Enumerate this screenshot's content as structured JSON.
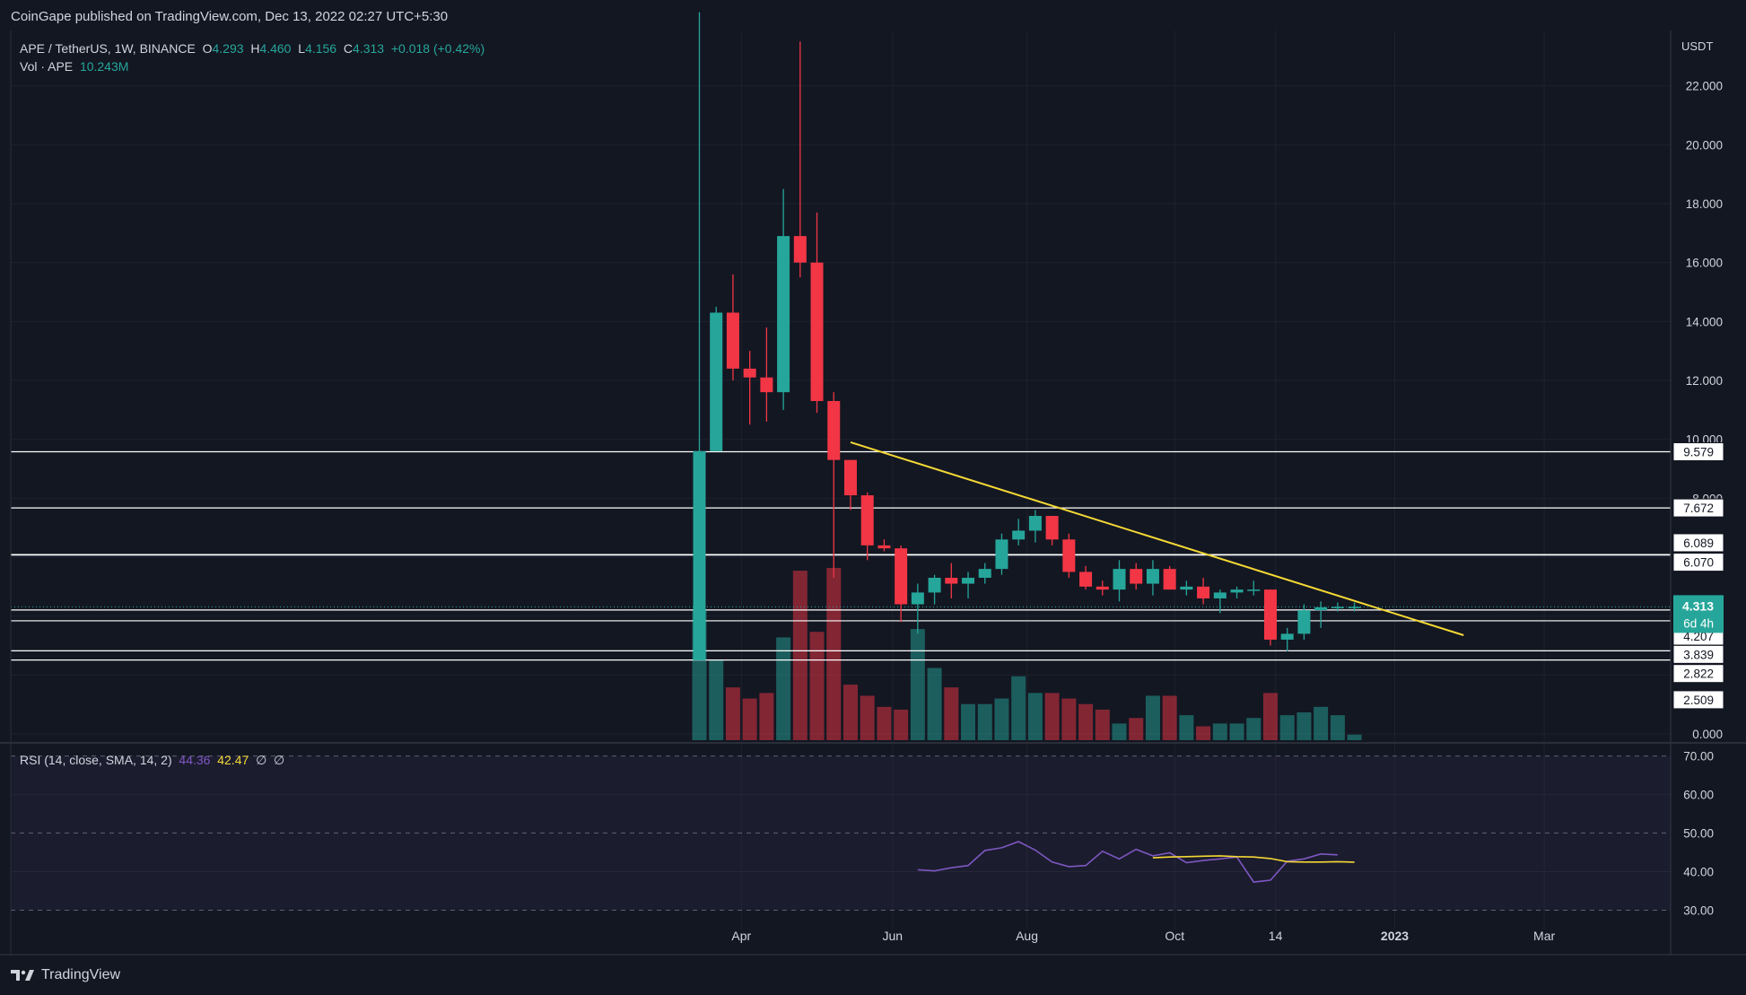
{
  "publisher": "CoinGape published on TradingView.com, Dec 13, 2022 02:27 UTC+5:30",
  "brand": "TradingView",
  "legend": {
    "symbol": "APE / TetherUS, 1W, BINANCE",
    "o_label": "O",
    "o": "4.293",
    "h_label": "H",
    "h": "4.460",
    "l_label": "L",
    "l": "4.156",
    "c_label": "C",
    "c": "4.313",
    "change": "+0.018 (+0.42%)",
    "vol_label": "Vol · APE",
    "vol": "10.243M"
  },
  "rsi_legend": {
    "label": "RSI (14, close, SMA, 14, 2)",
    "rsi": "44.36",
    "sma": "42.47",
    "e1": "∅",
    "e2": "∅"
  },
  "colors": {
    "up": "#26a69a",
    "down": "#f23645",
    "trend": "#f5d835",
    "rsi": "#7e57c2",
    "rsi_sma": "#f5d835",
    "bg": "#131722",
    "grid": "#1e222d"
  },
  "chart_data": [
    {
      "type": "candlestick",
      "title": "APE / TetherUS, 1W, BINANCE",
      "y_unit": "USDT",
      "ylim": [
        0,
        24
      ],
      "y_ticks": [
        "0.000",
        "2.000",
        "4.000",
        "6.000",
        "8.000",
        "10.000",
        "12.000",
        "14.000",
        "16.000",
        "18.000",
        "20.000",
        "22.000"
      ],
      "x_ticks": [
        {
          "label": "Apr",
          "week": 2.5
        },
        {
          "label": "Jun",
          "week": 11.5
        },
        {
          "label": "Aug",
          "week": 19.5
        },
        {
          "label": "Oct",
          "week": 28.3
        },
        {
          "label": "14",
          "week": 34.3
        },
        {
          "label": "2023",
          "week": 41.4
        },
        {
          "label": "Mar",
          "week": 50.3
        }
      ],
      "candles": [
        {
          "o": 2.5,
          "h": 24.5,
          "l": 2.5,
          "c": 9.6,
          "v": 47
        },
        {
          "o": 9.6,
          "h": 14.5,
          "l": 9.6,
          "c": 14.3,
          "v": 29
        },
        {
          "o": 14.3,
          "h": 15.6,
          "l": 12.0,
          "c": 12.4,
          "v": 19
        },
        {
          "o": 12.4,
          "h": 13.0,
          "l": 10.5,
          "c": 12.1,
          "v": 15
        },
        {
          "o": 12.1,
          "h": 13.8,
          "l": 10.6,
          "c": 11.6,
          "v": 17
        },
        {
          "o": 11.6,
          "h": 18.5,
          "l": 11.0,
          "c": 16.9,
          "v": 37
        },
        {
          "o": 16.9,
          "h": 23.5,
          "l": 15.5,
          "c": 16.0,
          "v": 61
        },
        {
          "o": 16.0,
          "h": 17.7,
          "l": 10.9,
          "c": 11.3,
          "v": 39
        },
        {
          "o": 11.3,
          "h": 11.6,
          "l": 5.3,
          "c": 9.3,
          "v": 62
        },
        {
          "o": 9.3,
          "h": 9.3,
          "l": 7.6,
          "c": 8.1,
          "v": 20
        },
        {
          "o": 8.1,
          "h": 8.2,
          "l": 5.9,
          "c": 6.4,
          "v": 16
        },
        {
          "o": 6.4,
          "h": 6.6,
          "l": 6.2,
          "c": 6.3,
          "v": 12
        },
        {
          "o": 6.3,
          "h": 6.4,
          "l": 3.8,
          "c": 4.4,
          "v": 11
        },
        {
          "o": 4.4,
          "h": 5.1,
          "l": 3.4,
          "c": 4.8,
          "v": 40
        },
        {
          "o": 4.8,
          "h": 5.4,
          "l": 4.4,
          "c": 5.3,
          "v": 26
        },
        {
          "o": 5.3,
          "h": 5.8,
          "l": 4.6,
          "c": 5.1,
          "v": 19
        },
        {
          "o": 5.1,
          "h": 5.5,
          "l": 4.6,
          "c": 5.3,
          "v": 13
        },
        {
          "o": 5.3,
          "h": 5.8,
          "l": 5.1,
          "c": 5.6,
          "v": 13
        },
        {
          "o": 5.6,
          "h": 6.8,
          "l": 5.4,
          "c": 6.6,
          "v": 15
        },
        {
          "o": 6.6,
          "h": 7.3,
          "l": 6.4,
          "c": 6.9,
          "v": 23
        },
        {
          "o": 6.9,
          "h": 7.6,
          "l": 6.5,
          "c": 7.4,
          "v": 17
        },
        {
          "o": 7.4,
          "h": 7.4,
          "l": 6.4,
          "c": 6.6,
          "v": 17
        },
        {
          "o": 6.6,
          "h": 6.8,
          "l": 5.3,
          "c": 5.5,
          "v": 15
        },
        {
          "o": 5.5,
          "h": 5.7,
          "l": 4.9,
          "c": 5.0,
          "v": 13
        },
        {
          "o": 5.0,
          "h": 5.2,
          "l": 4.7,
          "c": 4.9,
          "v": 11
        },
        {
          "o": 4.9,
          "h": 5.9,
          "l": 4.5,
          "c": 5.6,
          "v": 6
        },
        {
          "o": 5.6,
          "h": 5.8,
          "l": 4.9,
          "c": 5.1,
          "v": 8
        },
        {
          "o": 5.1,
          "h": 5.9,
          "l": 4.7,
          "c": 5.6,
          "v": 16
        },
        {
          "o": 5.6,
          "h": 5.7,
          "l": 4.9,
          "c": 4.9,
          "v": 16
        },
        {
          "o": 4.9,
          "h": 5.2,
          "l": 4.7,
          "c": 5.0,
          "v": 9
        },
        {
          "o": 5.0,
          "h": 5.3,
          "l": 4.4,
          "c": 4.6,
          "v": 5
        },
        {
          "o": 4.6,
          "h": 4.9,
          "l": 4.1,
          "c": 4.8,
          "v": 6
        },
        {
          "o": 4.8,
          "h": 5.0,
          "l": 4.6,
          "c": 4.9,
          "v": 6
        },
        {
          "o": 4.9,
          "h": 5.2,
          "l": 4.7,
          "c": 4.9,
          "v": 8
        },
        {
          "o": 4.9,
          "h": 4.9,
          "l": 3.0,
          "c": 3.2,
          "v": 17
        },
        {
          "o": 3.2,
          "h": 3.6,
          "l": 2.8,
          "c": 3.4,
          "v": 9
        },
        {
          "o": 3.4,
          "h": 4.4,
          "l": 3.2,
          "c": 4.2,
          "v": 10
        },
        {
          "o": 4.2,
          "h": 4.5,
          "l": 3.6,
          "c": 4.3,
          "v": 12
        },
        {
          "o": 4.293,
          "h": 4.46,
          "l": 4.156,
          "c": 4.313,
          "v": 9
        },
        {
          "o": 4.293,
          "h": 4.46,
          "l": 4.156,
          "c": 4.313,
          "v": 2
        }
      ],
      "horizontal_levels": [
        {
          "label": "9.579",
          "value": 9.579
        },
        {
          "label": "7.672",
          "value": 7.672
        },
        {
          "label": "6.089",
          "value": 6.089
        },
        {
          "label": "6.070",
          "value": 6.07
        },
        {
          "label": "4.207",
          "value": 4.207
        },
        {
          "label": "3.839",
          "value": 3.839
        },
        {
          "label": "2.822",
          "value": 2.822
        },
        {
          "label": "2.509",
          "value": 2.509
        }
      ],
      "level_label_positions": [
        {
          "label": "9.579",
          "value": 9.579
        },
        {
          "label": "7.672",
          "value": 7.672
        },
        {
          "label": "6.089",
          "value": 6.489
        },
        {
          "label": "6.070",
          "value": 5.83
        },
        {
          "label": "4.207",
          "value": 3.32
        },
        {
          "label": "3.839",
          "value": 2.7
        },
        {
          "label": "2.822",
          "value": 2.05
        },
        {
          "label": "2.509",
          "value": 1.16
        }
      ],
      "trendline": {
        "from": {
          "week": 9,
          "value": 9.9
        },
        "to": {
          "week": 45.5,
          "value": 3.35
        }
      },
      "current_price": {
        "label": "4.313",
        "value": 4.313,
        "countdown": "6d 4h"
      }
    },
    {
      "type": "line",
      "title": "RSI (14, close, SMA, 14, 2)",
      "ylim": [
        25,
        72
      ],
      "y_ticks": [
        "30.00",
        "40.00",
        "50.00",
        "60.00",
        "70.00"
      ],
      "band": [
        30,
        70
      ],
      "series": [
        {
          "name": "RSI",
          "start_week": 13,
          "values": [
            40.5,
            40.2,
            41,
            41.6,
            45.5,
            46.2,
            47.8,
            45.6,
            42.5,
            41.3,
            41.6,
            45.3,
            43.3,
            45.8,
            44.1,
            44.9,
            42.3,
            42.9,
            43.3,
            43.8,
            37.3,
            37.8,
            42.7,
            43.3,
            44.6,
            44.36
          ]
        },
        {
          "name": "RSI-based MA",
          "start_week": 27,
          "values": [
            43.6,
            43.8,
            43.9,
            44.0,
            44.1,
            43.9,
            43.8,
            43.4,
            42.6,
            42.5,
            42.5,
            42.6,
            42.47
          ]
        }
      ]
    }
  ]
}
